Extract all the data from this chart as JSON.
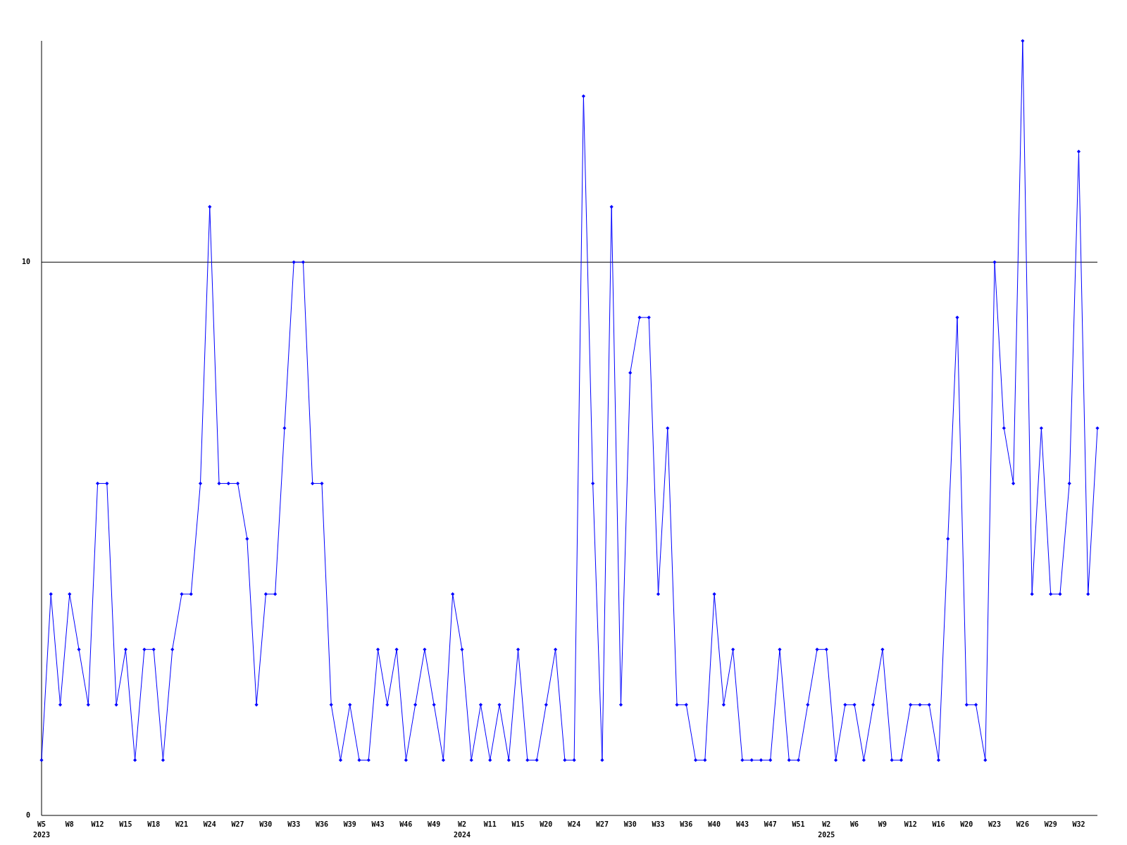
{
  "chart_data": {
    "type": "line",
    "categories": [
      "W5\n2023",
      null,
      null,
      "W8",
      null,
      null,
      "W12",
      null,
      null,
      "W15",
      null,
      null,
      "W18",
      null,
      null,
      "W21",
      null,
      null,
      "W24",
      null,
      null,
      "W27",
      null,
      null,
      "W30",
      null,
      null,
      "W33",
      null,
      null,
      "W36",
      null,
      null,
      "W39",
      null,
      null,
      "W43",
      null,
      null,
      "W46",
      null,
      null,
      "W49",
      null,
      null,
      "W2\n2024",
      null,
      null,
      "W11",
      null,
      null,
      "W15",
      null,
      null,
      "W20",
      null,
      null,
      "W24",
      null,
      null,
      "W27",
      null,
      null,
      "W30",
      null,
      null,
      "W33",
      null,
      null,
      "W36",
      null,
      null,
      "W40",
      null,
      null,
      "W43",
      null,
      null,
      "W47",
      null,
      null,
      "W51",
      null,
      null,
      "W2\n2025",
      null,
      null,
      "W6",
      null,
      null,
      "W9",
      null,
      null,
      "W12",
      null,
      null,
      "W16",
      null,
      null,
      "W20",
      null,
      null,
      "W23",
      null,
      null,
      "W26",
      null,
      null,
      "W29",
      null,
      null,
      "W32",
      null,
      null
    ],
    "series": [
      {
        "color": "#0000ff",
        "values": [
          1,
          4,
          2,
          4,
          3,
          2,
          6,
          6,
          2,
          3,
          1,
          3,
          3,
          1,
          3,
          4,
          4,
          6,
          11,
          6,
          6,
          6,
          5,
          2,
          4,
          4,
          7,
          10,
          10,
          6,
          6,
          2,
          1,
          2,
          1,
          1,
          3,
          2,
          3,
          1,
          2,
          3,
          2,
          1,
          4,
          3,
          1,
          2,
          1,
          2,
          1,
          3,
          1,
          1,
          2,
          3,
          1,
          1,
          13,
          6,
          1,
          11,
          2,
          8,
          9,
          9,
          4,
          7,
          2,
          2,
          1,
          1,
          4,
          2,
          3,
          1,
          1,
          1,
          1,
          3,
          1,
          1,
          2,
          3,
          3,
          1,
          2,
          2,
          1,
          2,
          3,
          1,
          1,
          2,
          2,
          2,
          1,
          5,
          9,
          2,
          2,
          1,
          10,
          7,
          6,
          14,
          4,
          7,
          4,
          4,
          6,
          12,
          4,
          7
        ]
      }
    ],
    "ylim": [
      0,
      14
    ],
    "yticks": [
      0,
      10
    ],
    "grid": false,
    "marker": "diamond",
    "line_style": "solid",
    "ref_lines": [
      {
        "axis": "y",
        "value": 10,
        "color": "#000000"
      }
    ]
  }
}
